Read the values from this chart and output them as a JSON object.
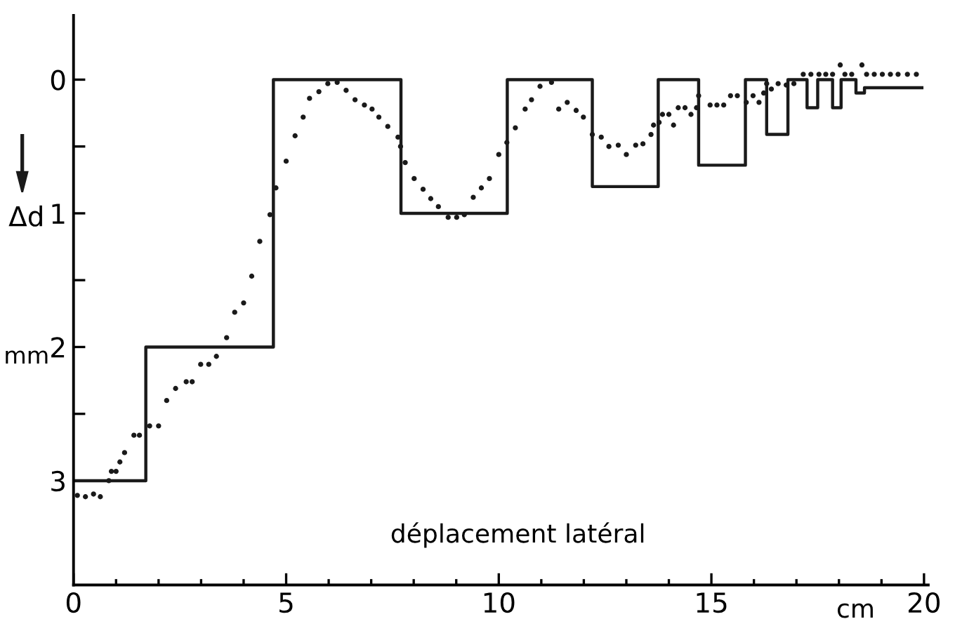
{
  "chart_data": {
    "type": "step",
    "xlabel": "déplacement latéral",
    "ylabel": "Δd",
    "annotations": [
      "mm",
      "cm"
    ],
    "xlim": [
      0,
      20.1
    ],
    "ylim": [
      3.78,
      -0.48
    ],
    "xticks": [
      0,
      {
        "value": 1,
        "label": null
      },
      {
        "value": 2,
        "label": null
      },
      {
        "value": 3,
        "label": null
      },
      {
        "value": 4,
        "label": null
      },
      5,
      {
        "value": 6,
        "label": null
      },
      {
        "value": 7,
        "label": null
      },
      {
        "value": 8,
        "label": null
      },
      {
        "value": 9,
        "label": null
      },
      10,
      {
        "value": 11,
        "label": null
      },
      {
        "value": 12,
        "label": null
      },
      {
        "value": 13,
        "label": null
      },
      {
        "value": 14,
        "label": null
      },
      15,
      {
        "value": 16,
        "label": null
      },
      {
        "value": 17,
        "label": null
      },
      {
        "value": 18,
        "label": null
      },
      {
        "value": 19,
        "label": null
      },
      20
    ],
    "yticks": [
      0,
      {
        "value": 0.5,
        "label": null
      },
      1,
      {
        "value": 1.5,
        "label": null
      },
      2,
      {
        "value": 2.5,
        "label": null
      },
      3
    ],
    "grid": false,
    "series": [
      {
        "color": "#1a1a1a",
        "line_style": "solid",
        "marker": "none",
        "x": [
          0,
          1.7,
          4.7,
          7.7,
          10.2,
          12.2,
          13.75,
          14.7,
          15.8,
          16.3,
          16.8,
          17.25,
          17.5,
          17.85,
          18.05,
          18.4,
          18.6,
          19.95
        ],
        "values": [
          3,
          2,
          0,
          1,
          0,
          0.8,
          0,
          0.64,
          0,
          0.41,
          0,
          0.21,
          0,
          0.21,
          0,
          0.1,
          0.06,
          0.06
        ]
      },
      {
        "type": "scatter",
        "color": "#1a1a1a",
        "marker": "circle",
        "x": [
          0.09,
          0.28,
          0.47,
          0.63,
          0.83,
          0.89,
          1.0,
          1.09,
          1.2,
          1.42,
          1.55,
          1.79,
          2.0,
          2.19,
          2.4,
          2.65,
          2.79,
          2.99,
          3.18,
          3.36,
          3.6,
          3.79,
          4.0,
          4.19,
          4.38,
          4.62,
          4.76,
          5.0,
          5.21,
          5.4,
          5.55,
          5.77,
          5.98,
          6.2,
          6.41,
          6.62,
          6.84,
          7.02,
          7.18,
          7.39,
          7.63,
          7.69,
          7.8,
          8.01,
          8.22,
          8.4,
          8.58,
          8.81,
          9.01,
          9.19,
          9.4,
          9.59,
          9.78,
          10.0,
          10.19,
          10.39,
          10.62,
          10.77,
          10.97,
          11.24,
          11.41,
          11.61,
          11.82,
          11.99,
          12.2,
          12.41,
          12.59,
          12.81,
          13.0,
          13.22,
          13.39,
          13.58,
          13.64,
          13.77,
          13.85,
          14.0,
          14.11,
          14.22,
          14.38,
          14.52,
          14.65,
          14.7,
          14.97,
          15.13,
          15.29,
          15.45,
          15.61,
          15.82,
          15.98,
          16.12,
          16.23,
          16.3,
          16.41,
          16.57,
          16.76,
          16.94,
          17.16,
          17.34,
          17.53,
          17.69,
          17.85,
          18.03,
          18.14,
          18.3,
          18.54,
          18.65,
          18.83,
          19.02,
          19.21,
          19.39,
          19.61,
          19.82
        ],
        "values": [
          3.11,
          3.12,
          3.1,
          3.12,
          3.0,
          2.93,
          2.93,
          2.86,
          2.79,
          2.66,
          2.66,
          2.59,
          2.59,
          2.4,
          2.31,
          2.26,
          2.26,
          2.13,
          2.13,
          2.07,
          1.93,
          1.74,
          1.67,
          1.47,
          1.21,
          1.01,
          0.81,
          0.61,
          0.42,
          0.28,
          0.14,
          0.09,
          0.03,
          0.02,
          0.08,
          0.15,
          0.19,
          0.22,
          0.28,
          0.35,
          0.43,
          0.5,
          0.62,
          0.74,
          0.82,
          0.89,
          0.95,
          1.03,
          1.03,
          1.01,
          0.88,
          0.81,
          0.74,
          0.56,
          0.47,
          0.36,
          0.22,
          0.15,
          0.05,
          0.02,
          0.22,
          0.17,
          0.23,
          0.28,
          0.41,
          0.43,
          0.5,
          0.49,
          0.56,
          0.49,
          0.48,
          0.41,
          0.34,
          0.32,
          0.26,
          0.26,
          0.34,
          0.21,
          0.21,
          0.26,
          0.21,
          0.12,
          0.19,
          0.19,
          0.19,
          0.12,
          0.12,
          0.17,
          0.12,
          0.17,
          0.1,
          0.03,
          0.07,
          0.03,
          0.04,
          0.03,
          -0.04,
          -0.04,
          -0.04,
          -0.04,
          -0.04,
          -0.11,
          -0.04,
          -0.04,
          -0.11,
          -0.04,
          -0.04,
          -0.04,
          -0.04,
          -0.04,
          -0.04,
          -0.04
        ]
      }
    ]
  }
}
